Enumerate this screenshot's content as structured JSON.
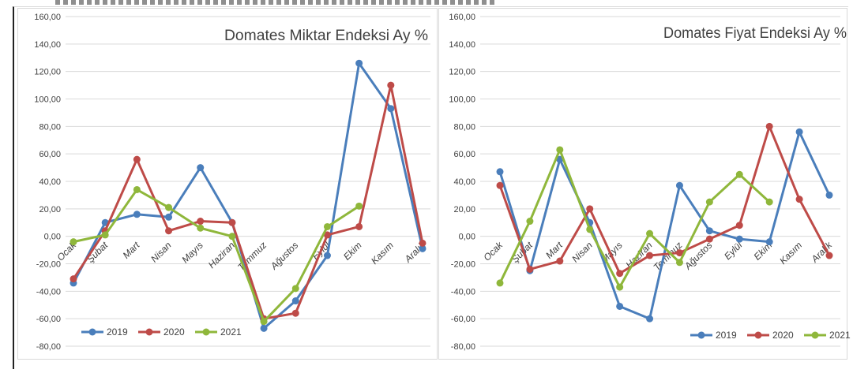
{
  "charts": [
    {
      "type": "line",
      "title": "Domates Miktar Endeksi Ay  %",
      "categories": [
        "Ocak",
        "Şubat",
        "Mart",
        "Nisan",
        "Mayıs",
        "Haziran",
        "Temmuz",
        "Ağustos",
        "Eylül",
        "Ekim",
        "Kasım",
        "Aralık"
      ],
      "ylim": [
        -80,
        160
      ],
      "yticks": [
        "160,00",
        "140,00",
        "120,00",
        "100,00",
        "80,00",
        "60,00",
        "40,00",
        "20,00",
        "0,00",
        "-20,00",
        "-40,00",
        "-60,00",
        "-80,00"
      ],
      "grid": true,
      "legend_position": "bottom-left",
      "series": [
        {
          "name": "2019",
          "color": "#4a7ebb",
          "values": [
            -34,
            10,
            16,
            14,
            50,
            10,
            -67,
            -47,
            -14,
            126,
            93,
            -9
          ]
        },
        {
          "name": "2020",
          "color": "#be4b48",
          "values": [
            -31,
            4,
            56,
            4,
            11,
            10,
            -60,
            -56,
            1,
            7,
            110,
            -5
          ]
        },
        {
          "name": "2021",
          "color": "#8fb73b",
          "values": [
            -4,
            1,
            34,
            21,
            6,
            0,
            -62,
            -38,
            7,
            22
          ]
        }
      ]
    },
    {
      "type": "line",
      "title": "Domates Fiyat Endeksi Ay %",
      "categories": [
        "Ocak",
        "Şubat",
        "Mart",
        "Nisan",
        "Mayıs",
        "Haziran",
        "Temmuz",
        "Ağustos",
        "Eylül",
        "Ekim",
        "Kasım",
        "Aralık"
      ],
      "ylim": [
        -80,
        160
      ],
      "yticks": [
        "160,00",
        "140,00",
        "120,00",
        "100,00",
        "80,00",
        "60,00",
        "40,00",
        "20,00",
        "0,00",
        "-20,00",
        "-40,00",
        "-60,00",
        "-80,00"
      ],
      "grid": true,
      "legend_position": "bottom-right",
      "series": [
        {
          "name": "2019",
          "color": "#4a7ebb",
          "values": [
            47,
            -25,
            56,
            10,
            -51,
            -60,
            37,
            4,
            -2,
            -4,
            76,
            30
          ]
        },
        {
          "name": "2020",
          "color": "#be4b48",
          "values": [
            37,
            -24,
            -18,
            20,
            -27,
            -14,
            -12,
            -2,
            8,
            80,
            27,
            -14
          ]
        },
        {
          "name": "2021",
          "color": "#8fb73b",
          "values": [
            -34,
            11,
            63,
            5,
            -37,
            2,
            -19,
            25,
            45,
            25
          ]
        }
      ]
    }
  ]
}
